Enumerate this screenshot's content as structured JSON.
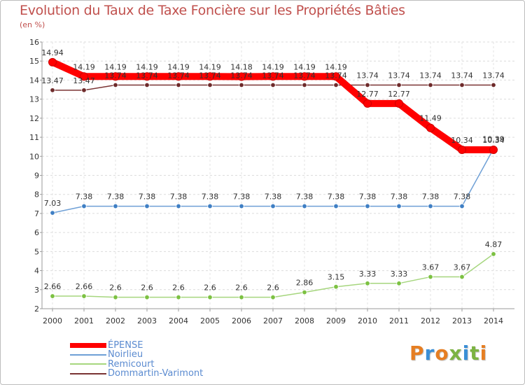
{
  "title": "Evolution du Taux de Taxe Foncière sur les Propriétés Bâties",
  "subtitle": "(en %)",
  "logo": {
    "text": "Proxiti",
    "colors": [
      "#e67e22",
      "#3a8fd6",
      "#e67e22",
      "#7cb342",
      "#3a8fd6",
      "#7cb342",
      "#e67e22"
    ]
  },
  "chart_data": {
    "type": "line",
    "title": "Evolution du Taux de Taxe Foncière sur les Propriétés Bâties",
    "ylabel": "(en %)",
    "xlabel": "",
    "x": [
      "2000",
      "2001",
      "2002",
      "2003",
      "2004",
      "2005",
      "2006",
      "2007",
      "2008",
      "2009",
      "2010",
      "2011",
      "2012",
      "2013",
      "2014"
    ],
    "ylim": [
      2,
      16
    ],
    "yticks": [
      2,
      3,
      4,
      5,
      6,
      7,
      8,
      9,
      10,
      11,
      12,
      13,
      14,
      15,
      16
    ],
    "legend_position": "bottom-left",
    "series": [
      {
        "name": "ÉPENSE",
        "color": "#ff0000",
        "marker": "#ff0000",
        "width": "thick",
        "values": [
          14.94,
          14.19,
          14.19,
          14.19,
          14.19,
          14.19,
          14.18,
          14.19,
          14.19,
          14.19,
          12.77,
          12.77,
          11.49,
          10.34,
          10.34
        ],
        "labels": [
          "14.94",
          "14.19",
          "14.19",
          "14.19",
          "14.19",
          "14.19",
          "14.18",
          "14.19",
          "14.19",
          "14.19",
          "12.77",
          "12.77",
          "11.49",
          "10.34",
          "10.34"
        ]
      },
      {
        "name": "Noirlieu",
        "color": "#6fa0d6",
        "marker": "#3f7fc4",
        "width": "thin",
        "values": [
          7.03,
          7.38,
          7.38,
          7.38,
          7.38,
          7.38,
          7.38,
          7.38,
          7.38,
          7.38,
          7.38,
          7.38,
          7.38,
          7.38,
          10.39
        ],
        "labels": [
          "7.03",
          "7.38",
          "7.38",
          "7.38",
          "7.38",
          "7.38",
          "7.38",
          "7.38",
          "7.38",
          "7.38",
          "7.38",
          "7.38",
          "7.38",
          "7.38",
          "10.39"
        ]
      },
      {
        "name": "Remicourt",
        "color": "#a6d67e",
        "marker": "#7cc142",
        "width": "thin",
        "values": [
          2.66,
          2.66,
          2.6,
          2.6,
          2.6,
          2.6,
          2.6,
          2.6,
          2.86,
          3.15,
          3.33,
          3.33,
          3.67,
          3.67,
          4.87
        ],
        "labels": [
          "2.66",
          "2.66",
          "2.6",
          "2.6",
          "2.6",
          "2.6",
          "2.6",
          "2.6",
          "2.86",
          "3.15",
          "3.33",
          "3.33",
          "3.67",
          "3.67",
          "4.87"
        ]
      },
      {
        "name": "Dommartin-Varimont",
        "color": "#7a3333",
        "marker": "#6e2a2a",
        "width": "thin",
        "values": [
          13.47,
          13.47,
          13.74,
          13.74,
          13.74,
          13.74,
          13.74,
          13.74,
          13.74,
          13.74,
          13.74,
          13.74,
          13.74,
          13.74,
          13.74
        ],
        "labels": [
          "13.47",
          "13.47",
          "13.74",
          "13.74",
          "13.74",
          "13.74",
          "13.74",
          "13.74",
          "13.74",
          "13.74",
          "13.74",
          "13.74",
          "13.74",
          "13.74",
          "13.74"
        ]
      }
    ]
  }
}
